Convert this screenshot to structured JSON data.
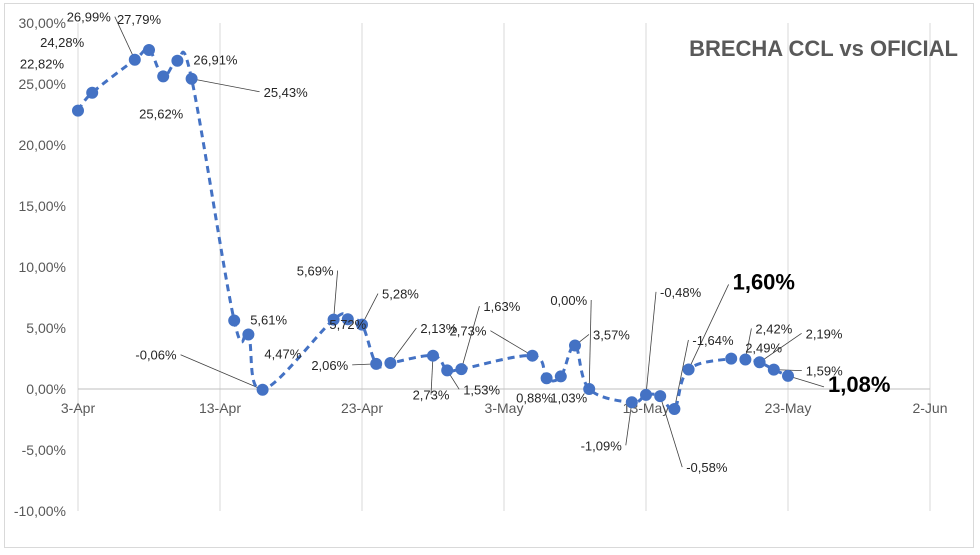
{
  "chart_data": {
    "type": "line",
    "title": "BRECHA CCL vs OFICIAL",
    "xlabel": "",
    "ylabel": "",
    "ylim": [
      -10,
      30
    ],
    "y_ticks": [
      "-10,00%",
      "-5,00%",
      "0,00%",
      "5,00%",
      "10,00%",
      "15,00%",
      "20,00%",
      "25,00%",
      "30,00%"
    ],
    "x_ticks": [
      "3-Apr",
      "13-Apr",
      "23-Apr",
      "3-May",
      "13-May",
      "23-May",
      "2-Jun"
    ],
    "grid": "vertical gridlines at x ticks, light gray",
    "series": [
      {
        "color": "#4472c4",
        "line_style": "dashed",
        "points": [
          {
            "x": "2023-04-03",
            "y": 22.82,
            "label": "22,82%"
          },
          {
            "x": "2023-04-04",
            "y": 24.28,
            "label": "24,28%"
          },
          {
            "x": "2023-04-07",
            "y": 26.99,
            "label": "26,99%"
          },
          {
            "x": "2023-04-08",
            "y": 27.79,
            "label": "27,79%"
          },
          {
            "x": "2023-04-09",
            "y": 25.62,
            "label": "25,62%"
          },
          {
            "x": "2023-04-10",
            "y": 26.91,
            "label": "26,91%"
          },
          {
            "x": "2023-04-11",
            "y": 25.43,
            "label": "25,43%"
          },
          {
            "x": "2023-04-14",
            "y": 5.61,
            "label": "5,61%"
          },
          {
            "x": "2023-04-15",
            "y": 4.47,
            "label": "4,47%"
          },
          {
            "x": "2023-04-16",
            "y": -0.06,
            "label": "-0,06%"
          },
          {
            "x": "2023-04-21",
            "y": 5.69,
            "label": "5,69%"
          },
          {
            "x": "2023-04-22",
            "y": 5.72,
            "label": "5,72%"
          },
          {
            "x": "2023-04-23",
            "y": 5.28,
            "label": "5,28%"
          },
          {
            "x": "2023-04-24",
            "y": 2.06,
            "label": "2,06%"
          },
          {
            "x": "2023-04-25",
            "y": 2.13,
            "label": "2,13%"
          },
          {
            "x": "2023-04-28",
            "y": 2.73,
            "label": "2,73%"
          },
          {
            "x": "2023-04-29",
            "y": 1.53,
            "label": "1,53%"
          },
          {
            "x": "2023-04-30",
            "y": 1.63,
            "label": "1,63%"
          },
          {
            "x": "2023-05-05",
            "y": 2.73,
            "label": "2,73%"
          },
          {
            "x": "2023-05-06",
            "y": 0.88,
            "label": "0,88%"
          },
          {
            "x": "2023-05-07",
            "y": 1.03,
            "label": "1,03%"
          },
          {
            "x": "2023-05-08",
            "y": 3.57,
            "label": "3,57%"
          },
          {
            "x": "2023-05-09",
            "y": 0.0,
            "label": "0,00%"
          },
          {
            "x": "2023-05-12",
            "y": -1.09,
            "label": "-1,09%"
          },
          {
            "x": "2023-05-13",
            "y": -0.48,
            "label": "-0,48%"
          },
          {
            "x": "2023-05-14",
            "y": -0.58,
            "label": "-0,58%"
          },
          {
            "x": "2023-05-15",
            "y": -1.64,
            "label": "-1,64%"
          },
          {
            "x": "2023-05-16",
            "y": 1.6,
            "label": "1,60%"
          },
          {
            "x": "2023-05-19",
            "y": 2.49,
            "label": "2,49%"
          },
          {
            "x": "2023-05-20",
            "y": 2.42,
            "label": "2,42%"
          },
          {
            "x": "2023-05-21",
            "y": 2.19,
            "label": "2,19%"
          },
          {
            "x": "2023-05-22",
            "y": 1.59,
            "label": "1,59%"
          },
          {
            "x": "2023-05-23",
            "y": 1.08,
            "label": "1,08%"
          }
        ]
      }
    ]
  }
}
